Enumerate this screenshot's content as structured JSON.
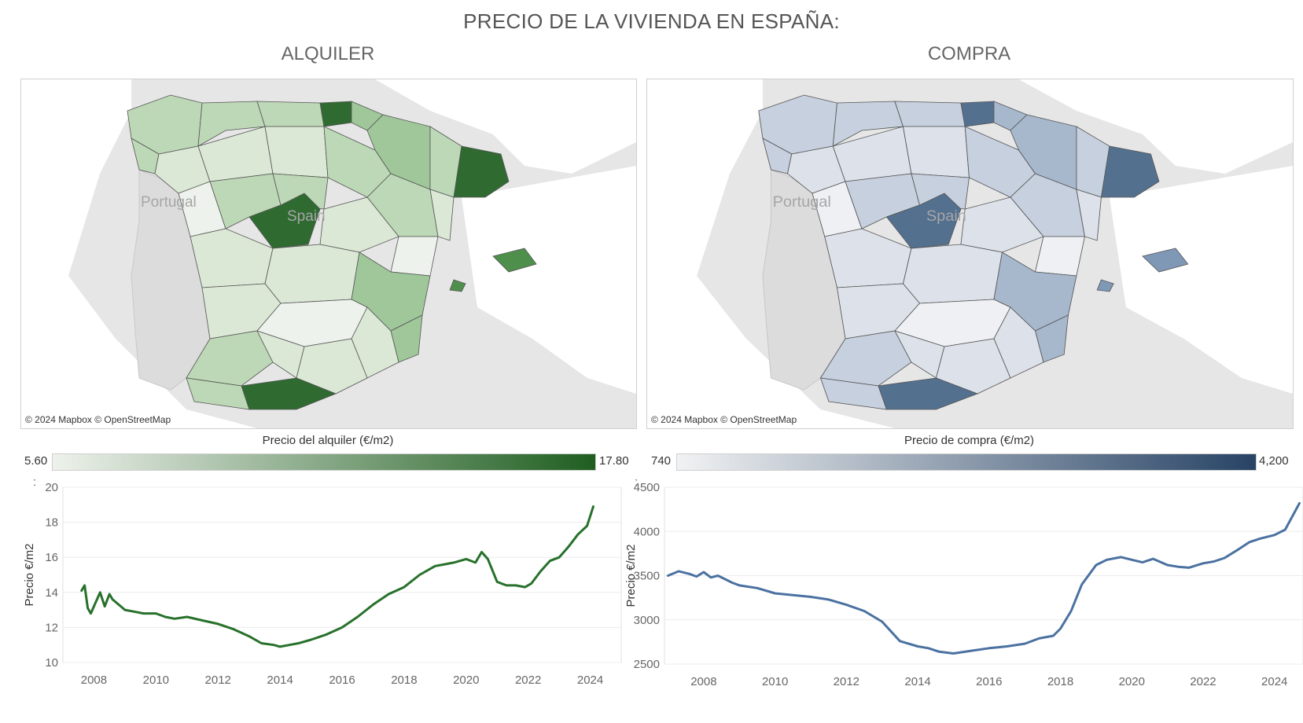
{
  "title": "PRECIO DE LA VIVIENDA EN ESPAÑA:",
  "panels": {
    "rent": {
      "subtitle": "ALQUILER",
      "map_credit": "© 2024 Mapbox © OpenStreetMap",
      "map_labels": {
        "portugal": "Portugal",
        "spain": "Spain"
      },
      "legend": {
        "title": "Precio del alquiler (€/m2)",
        "min": "5.60",
        "max": "17.80",
        "color_low": "#eef2ec",
        "color_high": "#1f5e20"
      },
      "line_color": "#27712b",
      "map_fills": {
        "light": "#eef2ec",
        "low": "#dbe8d6",
        "mid": "#bdd8b6",
        "high": "#9fc79a",
        "top": "#4f8f4c",
        "max": "#2f6a31"
      }
    },
    "buy": {
      "subtitle": "COMPRA",
      "map_credit": "© 2024 Mapbox © OpenStreetMap",
      "map_labels": {
        "portugal": "Portugal",
        "spain": "Spain"
      },
      "legend": {
        "title": "Precio de compra (€/m2)",
        "min": "740",
        "max": "4,200",
        "color_low": "#f1f2f3",
        "color_high": "#274365"
      },
      "line_color": "#4a71a0",
      "map_fills": {
        "light": "#eef0f3",
        "low": "#dde2ea",
        "mid": "#c6d0de",
        "high": "#a7b8cd",
        "top": "#7f98b6",
        "max": "#53708f"
      }
    }
  },
  "chart_data": [
    {
      "type": "line",
      "title": "",
      "xlabel": "",
      "ylabel": "Precio €/m2",
      "xlim": [
        2007.0,
        2025.0
      ],
      "ylim": [
        10,
        20
      ],
      "x_ticks": [
        "2008",
        "2010",
        "2012",
        "2014",
        "2016",
        "2018",
        "2020",
        "2022",
        "2024"
      ],
      "y_ticks": [
        "10",
        "12",
        "14",
        "16",
        "18",
        "20"
      ],
      "grid": true,
      "series": [
        {
          "x": [
            2007.6,
            2007.7,
            2007.8,
            2007.9,
            2008.0,
            2008.2,
            2008.35,
            2008.5,
            2008.6,
            2008.8,
            2009.0,
            2009.3,
            2009.6,
            2010.0,
            2010.3,
            2010.6,
            2011.0,
            2011.5,
            2012.0,
            2012.5,
            2013.0,
            2013.4,
            2013.8,
            2014.0,
            2014.3,
            2014.6,
            2015.0,
            2015.5,
            2016.0,
            2016.5,
            2017.0,
            2017.5,
            2018.0,
            2018.5,
            2019.0,
            2019.3,
            2019.6,
            2020.0,
            2020.3,
            2020.5,
            2020.7,
            2021.0,
            2021.3,
            2021.6,
            2021.9,
            2022.1,
            2022.4,
            2022.7,
            2023.0,
            2023.3,
            2023.6,
            2023.9,
            2024.1
          ],
          "y": [
            14.1,
            14.4,
            13.1,
            12.8,
            13.2,
            14.0,
            13.2,
            13.9,
            13.6,
            13.3,
            13.0,
            12.9,
            12.8,
            12.8,
            12.6,
            12.5,
            12.6,
            12.4,
            12.2,
            11.9,
            11.5,
            11.1,
            11.0,
            10.9,
            11.0,
            11.1,
            11.3,
            11.6,
            12.0,
            12.6,
            13.3,
            13.9,
            14.3,
            15.0,
            15.5,
            15.6,
            15.7,
            15.9,
            15.7,
            16.3,
            15.9,
            14.6,
            14.4,
            14.4,
            14.3,
            14.5,
            15.2,
            15.8,
            16.0,
            16.6,
            17.3,
            17.8,
            18.9
          ]
        }
      ]
    },
    {
      "type": "line",
      "title": "",
      "xlabel": "",
      "ylabel": "Precio €/m2",
      "xlim": [
        2006.9,
        2024.8
      ],
      "ylim": [
        2500,
        4500
      ],
      "x_ticks": [
        "2008",
        "2010",
        "2012",
        "2014",
        "2016",
        "2018",
        "2020",
        "2022",
        "2024"
      ],
      "y_ticks": [
        "2500",
        "3000",
        "3500",
        "4000",
        "4500"
      ],
      "grid": true,
      "series": [
        {
          "x": [
            2007.0,
            2007.3,
            2007.6,
            2007.8,
            2008.0,
            2008.2,
            2008.4,
            2008.6,
            2008.8,
            2009.0,
            2009.5,
            2010.0,
            2010.5,
            2011.0,
            2011.5,
            2012.0,
            2012.5,
            2013.0,
            2013.5,
            2014.0,
            2014.3,
            2014.6,
            2015.0,
            2015.5,
            2016.0,
            2016.5,
            2017.0,
            2017.4,
            2017.8,
            2018.0,
            2018.3,
            2018.6,
            2019.0,
            2019.3,
            2019.7,
            2020.0,
            2020.3,
            2020.6,
            2021.0,
            2021.3,
            2021.6,
            2022.0,
            2022.3,
            2022.6,
            2023.0,
            2023.3,
            2023.6,
            2024.0,
            2024.3,
            2024.7
          ],
          "y": [
            3500,
            3550,
            3520,
            3490,
            3540,
            3480,
            3500,
            3460,
            3420,
            3390,
            3360,
            3300,
            3280,
            3260,
            3230,
            3170,
            3100,
            2980,
            2760,
            2700,
            2680,
            2640,
            2620,
            2650,
            2680,
            2700,
            2730,
            2790,
            2820,
            2900,
            3100,
            3400,
            3620,
            3680,
            3710,
            3680,
            3650,
            3690,
            3620,
            3600,
            3590,
            3640,
            3660,
            3700,
            3800,
            3880,
            3920,
            3960,
            4020,
            4320
          ]
        }
      ]
    }
  ]
}
